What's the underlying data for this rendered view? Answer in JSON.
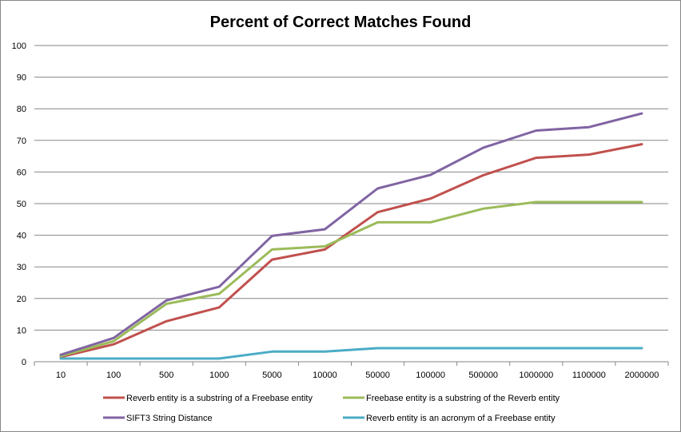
{
  "chart_data": {
    "type": "line",
    "title": "Percent  of Correct Matches Found",
    "xlabel": "",
    "ylabel": "",
    "categories": [
      "10",
      "100",
      "500",
      "1000",
      "5000",
      "10000",
      "50000",
      "100000",
      "500000",
      "1000000",
      "1100000",
      "2000000"
    ],
    "ylim": [
      0,
      100
    ],
    "yticks": [
      "0",
      "10",
      "20",
      "30",
      "40",
      "50",
      "60",
      "70",
      "80",
      "90",
      "100"
    ],
    "grid": true,
    "legend_position": "bottom",
    "series": [
      {
        "name": "Reverb entity is a substring of a Freebase entity",
        "color": "#C0504D",
        "values": [
          1.5,
          5.5,
          12.8,
          17.2,
          32.3,
          35.5,
          47.3,
          51.6,
          59.0,
          64.5,
          65.5,
          68.8
        ]
      },
      {
        "name": "Freebase entity is a substring of the Reverb entity",
        "color": "#9BBB59",
        "values": [
          1.8,
          6.5,
          18.3,
          21.5,
          35.5,
          36.5,
          44.1,
          44.1,
          48.4,
          50.5,
          50.5,
          50.5
        ]
      },
      {
        "name": "SIFT3 String Distance",
        "color": "#8064A2",
        "values": [
          2.2,
          7.5,
          19.4,
          23.7,
          39.8,
          41.9,
          54.8,
          59.1,
          67.7,
          73.1,
          74.2,
          78.5
        ]
      },
      {
        "name": "Reverb entity is an acronym of a Freebase entity",
        "color": "#4BACC6",
        "values": [
          1.0,
          1.0,
          1.0,
          1.0,
          3.2,
          3.2,
          4.3,
          4.3,
          4.3,
          4.3,
          4.3,
          4.3
        ]
      }
    ]
  }
}
